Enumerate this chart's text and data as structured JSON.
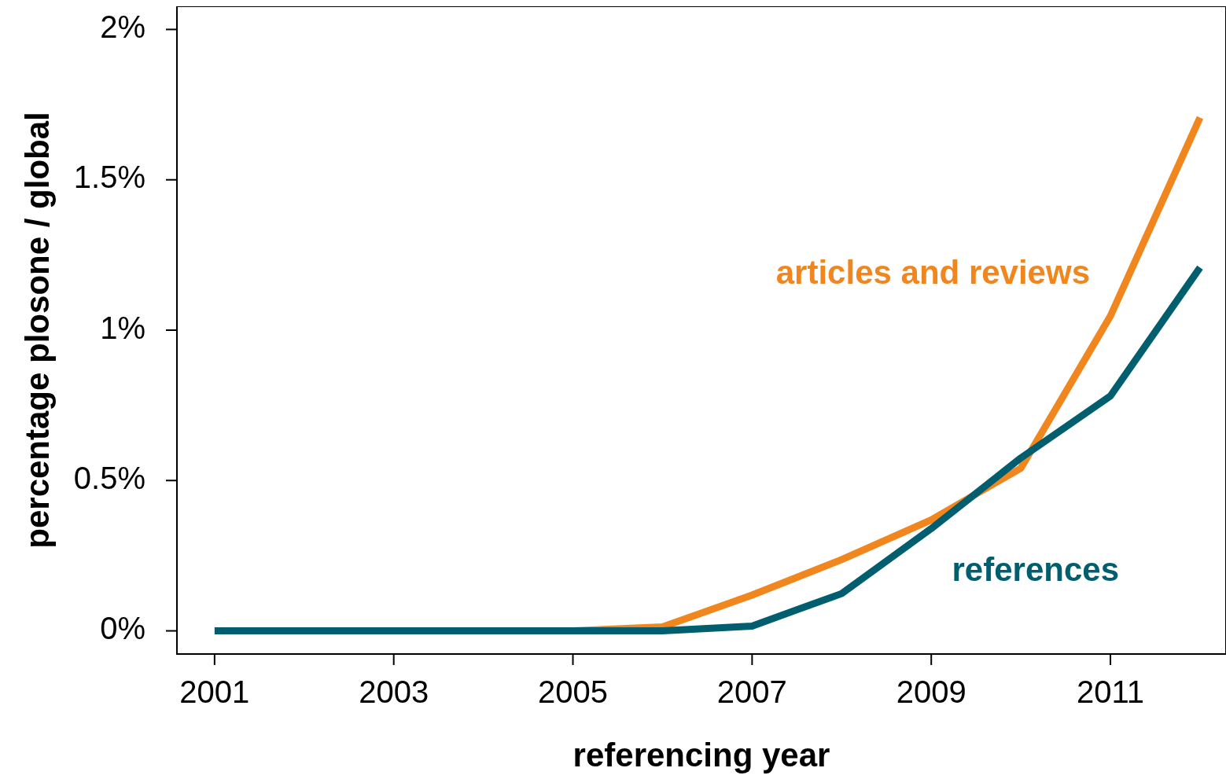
{
  "chart_data": {
    "type": "line",
    "xlabel": "referencing year",
    "ylabel": "percentage plosone / global",
    "x": [
      2001,
      2002,
      2003,
      2004,
      2005,
      2006,
      2007,
      2008,
      2009,
      2010,
      2011,
      2012
    ],
    "series": [
      {
        "name": "articles and reviews",
        "color": "#f0861d",
        "values": [
          null,
          null,
          null,
          null,
          0,
          0.013,
          0.119,
          0.237,
          0.369,
          0.541,
          1.047,
          1.707
        ]
      },
      {
        "name": "references",
        "color": "#005e6e",
        "values": [
          0,
          0,
          0,
          0,
          0,
          0,
          0.016,
          0.124,
          0.34,
          0.575,
          0.781,
          1.208
        ]
      }
    ],
    "xlim": [
      2000.58,
      2012.29
    ],
    "ylim": [
      -0.077,
      2.077
    ],
    "xticks": [
      2001,
      2003,
      2005,
      2007,
      2009,
      2011
    ],
    "yticks": [
      {
        "value": 0,
        "label": "0%"
      },
      {
        "value": 0.5,
        "label": "0.5%"
      },
      {
        "value": 1,
        "label": "1%"
      },
      {
        "value": 1.5,
        "label": "1.5%"
      },
      {
        "value": 2,
        "label": "2%"
      }
    ],
    "grid": false,
    "legend": false,
    "marker": "none",
    "line_style": "solid"
  }
}
